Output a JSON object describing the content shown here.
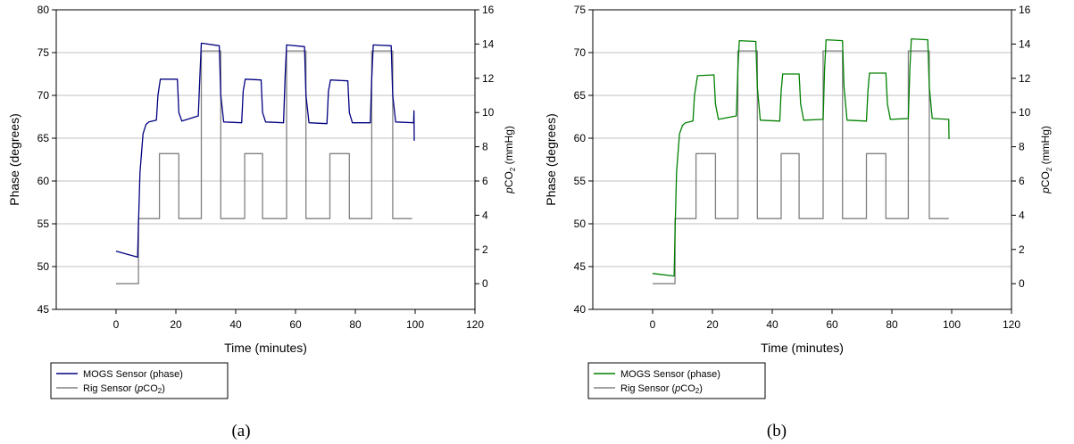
{
  "figure": {
    "panels": [
      {
        "caption": "(a)",
        "legend": [
          {
            "label": "MOGS Sensor (phase)",
            "color": "#000080"
          },
          {
            "label_prefix": "Rig Sensor (",
            "label_italic": "p",
            "label_main": "CO",
            "label_sub": "2",
            "label_suffix": ")",
            "color": "#808080"
          }
        ],
        "xlabel": "Time (minutes)",
        "ylabel": "Phase (degrees)",
        "y2label": {
          "italic": "p",
          "main": "CO",
          "sub": "2",
          "rest": " (mmHg)"
        }
      },
      {
        "caption": "(b)",
        "legend": [
          {
            "label": "MOGS Sensor (phase)",
            "color": "#008000"
          },
          {
            "label_prefix": "Rig Sensor (",
            "label_italic": "p",
            "label_main": "CO",
            "label_sub": "2",
            "label_suffix": ")",
            "color": "#808080"
          }
        ],
        "xlabel": "Time (minutes)",
        "ylabel": "Phase (degrees)",
        "y2label": {
          "italic": "p",
          "main": "CO",
          "sub": "2",
          "rest": " (mmHg)"
        }
      }
    ]
  },
  "chart_data": [
    {
      "type": "line",
      "xlabel": "Time (minutes)",
      "ylabel": "Phase (degrees)",
      "y2label": "pCO2 (mmHg)",
      "xlim": [
        -20,
        120
      ],
      "xticks": [
        0,
        20,
        40,
        60,
        80,
        100,
        120
      ],
      "ylim": [
        45,
        80
      ],
      "yticks": [
        45,
        50,
        55,
        60,
        65,
        70,
        75,
        80
      ],
      "y2lim": [
        -1.5,
        16
      ],
      "y2ticks": [
        0,
        2,
        4,
        6,
        8,
        10,
        12,
        14,
        16
      ],
      "grid": "horizontal",
      "legend": "below-left",
      "series": [
        {
          "name": "MOGS Sensor (phase)",
          "axis": "left",
          "color": "#000080",
          "x": [
            0,
            7.2,
            7.5,
            8,
            9,
            10,
            11,
            13.5,
            14,
            14.8,
            20.5,
            21,
            22,
            27.5,
            28,
            28.5,
            34.5,
            35,
            36,
            42,
            42.5,
            43.2,
            48.5,
            49,
            50,
            56,
            56.5,
            57,
            63,
            63.5,
            64.5,
            70.5,
            71,
            71.7,
            77.5,
            78,
            79,
            85,
            85.5,
            86,
            92,
            92.5,
            93.5,
            99.5,
            99.6,
            99.7
          ],
          "y": [
            51.8,
            51.1,
            55,
            61,
            65.5,
            66.6,
            66.9,
            67.1,
            70,
            71.9,
            71.9,
            68,
            67,
            67.6,
            72,
            76.1,
            75.8,
            70,
            66.9,
            66.8,
            70.5,
            71.9,
            71.8,
            68,
            66.9,
            66.8,
            72,
            75.9,
            75.7,
            70,
            66.8,
            66.7,
            70.5,
            71.8,
            71.7,
            68,
            66.8,
            66.8,
            72,
            75.9,
            75.8,
            70,
            66.9,
            66.8,
            68.2,
            64.7
          ]
        },
        {
          "name": "Rig Sensor (pCO2)",
          "axis": "right",
          "color": "#808080",
          "x": [
            0,
            7.5,
            7.5,
            14.5,
            14.5,
            21,
            21,
            28.5,
            28.5,
            35,
            35,
            43,
            43,
            49,
            49,
            57,
            57,
            63.5,
            63.5,
            71.5,
            71.5,
            78,
            78,
            85.5,
            85.5,
            92.5,
            92.5,
            99
          ],
          "y": [
            0,
            0,
            3.8,
            3.8,
            7.6,
            7.6,
            3.8,
            3.8,
            13.6,
            13.6,
            3.8,
            3.8,
            7.6,
            7.6,
            3.8,
            3.8,
            13.6,
            13.6,
            3.8,
            3.8,
            7.6,
            7.6,
            3.8,
            3.8,
            13.6,
            13.6,
            3.8,
            3.8
          ]
        }
      ]
    },
    {
      "type": "line",
      "xlabel": "Time (minutes)",
      "ylabel": "Phase (degrees)",
      "y2label": "pCO2 (mmHg)",
      "xlim": [
        -20,
        120
      ],
      "xticks": [
        0,
        20,
        40,
        60,
        80,
        100,
        120
      ],
      "ylim": [
        40,
        75
      ],
      "yticks": [
        40,
        45,
        50,
        55,
        60,
        65,
        70,
        75
      ],
      "y2lim": [
        -1.5,
        16
      ],
      "y2ticks": [
        0,
        2,
        4,
        6,
        8,
        10,
        12,
        14,
        16
      ],
      "grid": "horizontal",
      "legend": "below-left",
      "series": [
        {
          "name": "MOGS Sensor (phase)",
          "axis": "left",
          "color": "#008000",
          "x": [
            0,
            7.2,
            7.5,
            8,
            9,
            10,
            11,
            13.5,
            14,
            15,
            20.5,
            21,
            22,
            28,
            28.5,
            29,
            34.5,
            35,
            36,
            42.5,
            43,
            43.5,
            49,
            49.5,
            50.5,
            57,
            57.5,
            58,
            63.5,
            64,
            65,
            71.5,
            72,
            72.5,
            78,
            78.5,
            79.5,
            85.5,
            86,
            86.5,
            92,
            92.5,
            93.5,
            99,
            99.1
          ],
          "y": [
            44.2,
            43.9,
            49,
            56,
            60.5,
            61.5,
            61.8,
            62,
            65,
            67.3,
            67.4,
            64,
            62.2,
            62.6,
            68,
            71.4,
            71.3,
            66,
            62.1,
            62,
            65.5,
            67.5,
            67.5,
            64,
            62.1,
            62.2,
            68,
            71.5,
            71.4,
            66,
            62.1,
            62,
            65.5,
            67.6,
            67.6,
            64,
            62.2,
            62.3,
            68,
            71.6,
            71.5,
            66,
            62.3,
            62.2,
            59.9
          ]
        },
        {
          "name": "Rig Sensor (pCO2)",
          "axis": "right",
          "color": "#808080",
          "x": [
            0,
            7.5,
            7.5,
            14.5,
            14.5,
            21,
            21,
            28.5,
            28.5,
            35,
            35,
            43,
            43,
            49,
            49,
            57,
            57,
            63.5,
            63.5,
            71.5,
            71.5,
            78,
            78,
            85.5,
            85.5,
            92.5,
            92.5,
            99
          ],
          "y": [
            0,
            0,
            3.8,
            3.8,
            7.6,
            7.6,
            3.8,
            3.8,
            13.6,
            13.6,
            3.8,
            3.8,
            7.6,
            7.6,
            3.8,
            3.8,
            13.6,
            13.6,
            3.8,
            3.8,
            7.6,
            7.6,
            3.8,
            3.8,
            13.6,
            13.6,
            3.8,
            3.8
          ]
        }
      ]
    }
  ]
}
